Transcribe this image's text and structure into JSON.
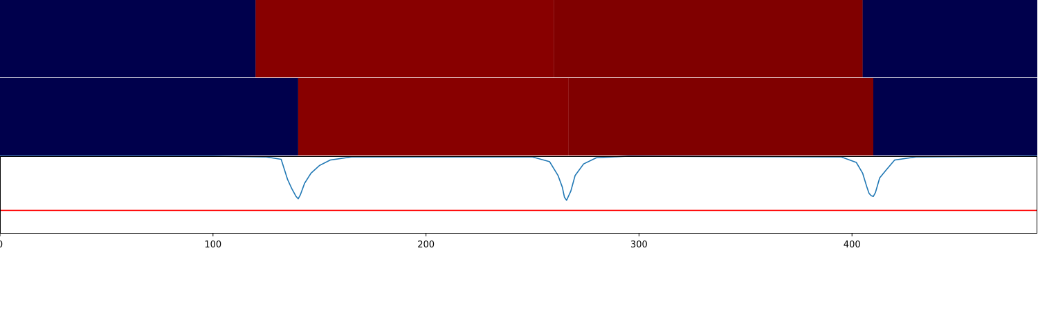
{
  "chart_data": [
    {
      "type": "heatmap",
      "panel": "top-segmentation",
      "xlim": [
        0,
        487
      ],
      "segments": [
        {
          "start": 0,
          "end": 120,
          "color": "#00004c"
        },
        {
          "start": 120,
          "end": 260,
          "color": "#880000"
        },
        {
          "start": 260,
          "end": 405,
          "color": "#800000"
        },
        {
          "start": 405,
          "end": 487,
          "color": "#00004c"
        }
      ]
    },
    {
      "type": "heatmap",
      "panel": "middle-segmentation",
      "xlim": [
        0,
        487
      ],
      "segments": [
        {
          "start": 0,
          "end": 140,
          "color": "#00004c"
        },
        {
          "start": 140,
          "end": 267,
          "color": "#880000"
        },
        {
          "start": 267,
          "end": 410,
          "color": "#800000"
        },
        {
          "start": 410,
          "end": 487,
          "color": "#00004c"
        }
      ]
    },
    {
      "type": "line",
      "panel": "bottom-signal",
      "xlim": [
        0,
        487
      ],
      "ylim": [
        0,
        1
      ],
      "xticks": [
        0,
        100,
        200,
        300,
        400
      ],
      "grid": false,
      "series": [
        {
          "color": "#1f77b4",
          "x": [
            0,
            40,
            100,
            125,
            132,
            135,
            137,
            139,
            140,
            141,
            143,
            146,
            150,
            155,
            165,
            250,
            258,
            262,
            264,
            265,
            266,
            268,
            270,
            274,
            280,
            295,
            395,
            402,
            405,
            407,
            408,
            409,
            410,
            411,
            413,
            416,
            420,
            430,
            487
          ],
          "y": [
            1.0,
            1.0,
            1.0,
            0.99,
            0.96,
            0.7,
            0.58,
            0.48,
            0.45,
            0.5,
            0.65,
            0.78,
            0.88,
            0.95,
            0.99,
            0.99,
            0.93,
            0.75,
            0.6,
            0.47,
            0.43,
            0.55,
            0.75,
            0.9,
            0.98,
            1.0,
            0.99,
            0.92,
            0.78,
            0.6,
            0.52,
            0.49,
            0.48,
            0.53,
            0.72,
            0.82,
            0.95,
            0.99,
            1.0
          ]
        },
        {
          "color": "#ff0000",
          "x": [
            0,
            487
          ],
          "y": [
            0.3,
            0.3
          ]
        }
      ]
    }
  ]
}
